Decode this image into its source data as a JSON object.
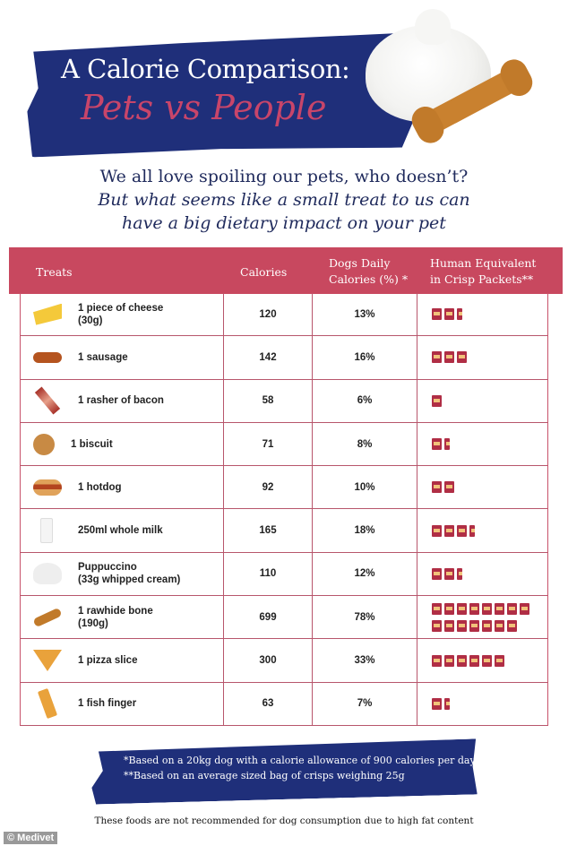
{
  "header": {
    "title_line1": "A Calorie Comparison:",
    "title_line2": "Pets vs People"
  },
  "intro": {
    "line1": "We all love spoiling our pets, who doesn’t?",
    "line2": "But what seems like a small treat to us can",
    "line3": "have a big dietary impact on your pet"
  },
  "table": {
    "columns": [
      "Treats",
      "Calories",
      "Dogs Daily",
      "Calories (%) *",
      "Human Equivalent",
      "in Crisp Packets**"
    ],
    "rows": [
      {
        "icon": "cheese-icon",
        "treat": [
          "1 piece of cheese",
          "(30g)"
        ],
        "calories": "120",
        "pct": "13%",
        "crisps": 2.5
      },
      {
        "icon": "sausage-icon",
        "treat": [
          "1 sausage"
        ],
        "calories": "142",
        "pct": "16%",
        "crisps": 3
      },
      {
        "icon": "bacon-icon",
        "treat": [
          "1 rasher of bacon"
        ],
        "calories": "58",
        "pct": "6%",
        "crisps": 1
      },
      {
        "icon": "biscuit-icon",
        "treat": [
          "1 biscuit"
        ],
        "calories": "71",
        "pct": "8%",
        "crisps": 1.5
      },
      {
        "icon": "hotdog-icon",
        "treat": [
          "1 hotdog"
        ],
        "calories": "92",
        "pct": "10%",
        "crisps": 2
      },
      {
        "icon": "milk-icon",
        "treat": [
          "250ml whole milk"
        ],
        "calories": "165",
        "pct": "18%",
        "crisps": 3.5
      },
      {
        "icon": "whipped-cream-icon",
        "treat": [
          "Puppuccino",
          "(33g whipped cream)"
        ],
        "calories": "110",
        "pct": "12%",
        "crisps": 2.5
      },
      {
        "icon": "bone-icon",
        "treat": [
          "1 rawhide bone",
          "(190g)"
        ],
        "calories": "699",
        "pct": "78%",
        "crisps": 15
      },
      {
        "icon": "pizza-icon",
        "treat": [
          "1 pizza slice"
        ],
        "calories": "300",
        "pct": "33%",
        "crisps": 6
      },
      {
        "icon": "fish-finger-icon",
        "treat": [
          "1 fish finger"
        ],
        "calories": "63",
        "pct": "7%",
        "crisps": 1.5
      }
    ]
  },
  "footnotes": {
    "note1": "*Based on a 20kg dog with a calorie  allowance of 900 calories per day",
    "note2": "**Based on an average sized bag  of crisps weighing 25g"
  },
  "disclaimer": "These foods are not recommended for dog consumption due to high fat content",
  "credit": "© Medivet",
  "colors": {
    "navy": "#1f2f7a",
    "pink": "#c8485f",
    "crisp_packet": "#b02e45"
  }
}
